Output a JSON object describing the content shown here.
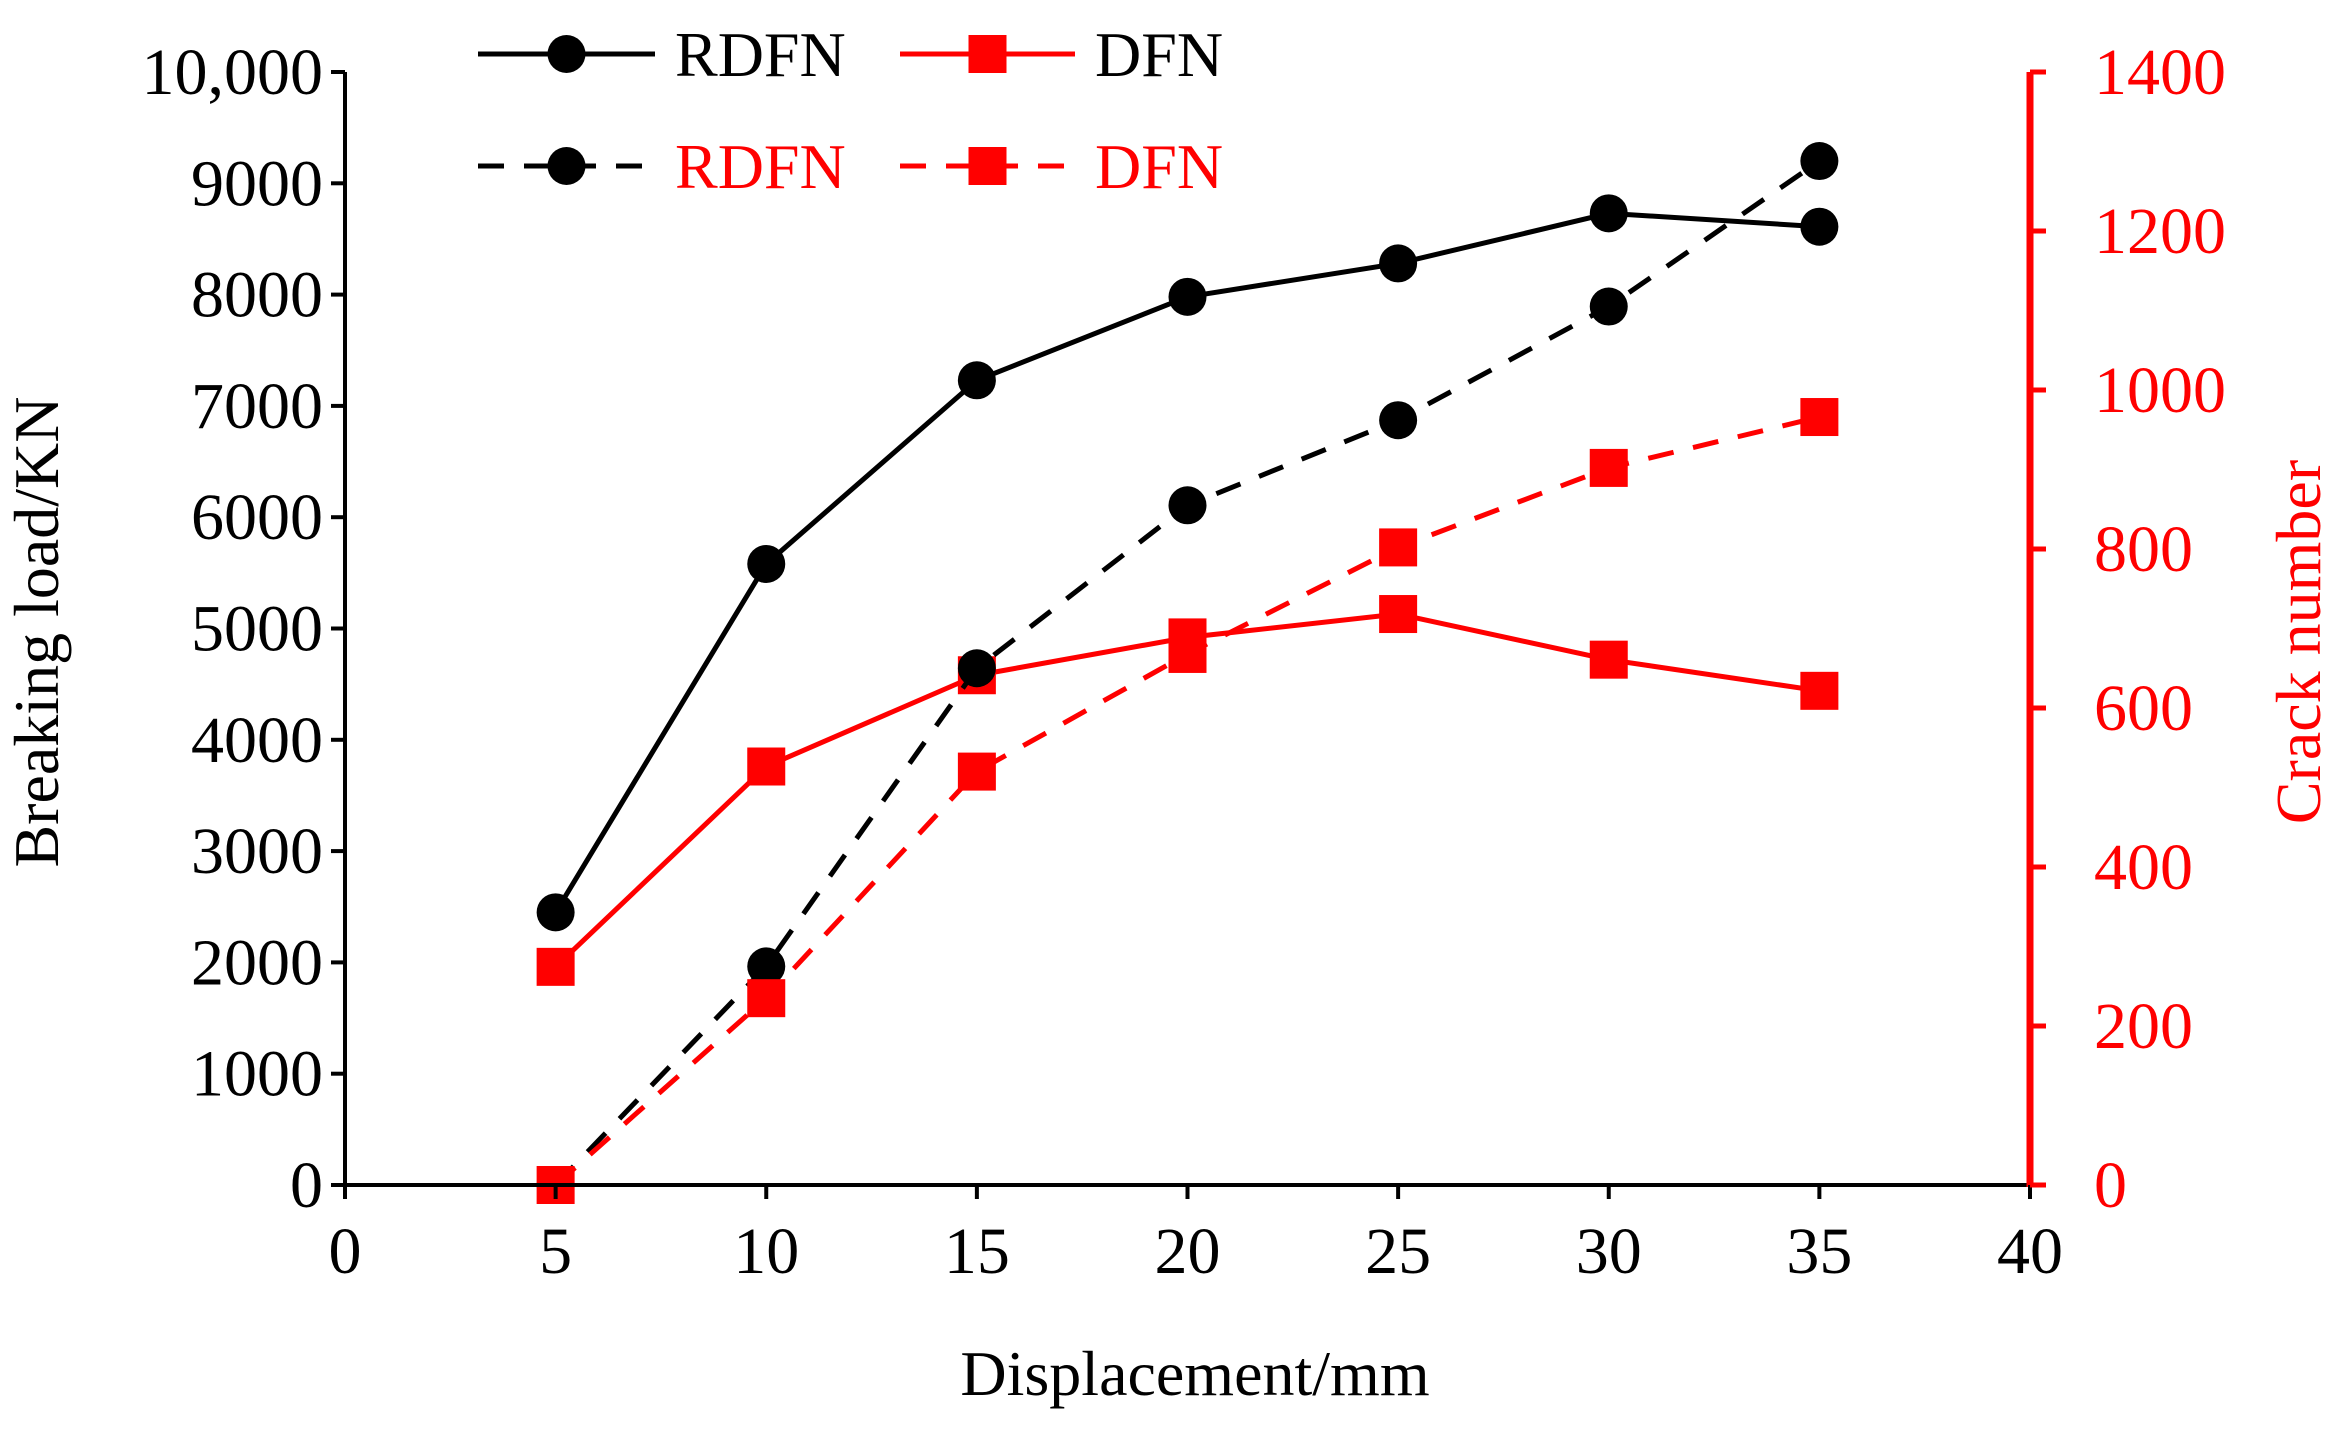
{
  "chart_data": {
    "type": "line",
    "xlabel": "Displacement/mm",
    "ylabel_left": "Breaking load/KN",
    "ylabel_right": "Crack number",
    "xlim": [
      0,
      40
    ],
    "ylim_left": [
      0,
      10000
    ],
    "ylim_right": [
      0,
      1400
    ],
    "x_ticks": [
      "0",
      "5",
      "10",
      "15",
      "20",
      "25",
      "30",
      "35",
      "40"
    ],
    "y_left_ticks": [
      "0",
      "1000",
      "2000",
      "3000",
      "4000",
      "5000",
      "6000",
      "7000",
      "8000",
      "9000",
      "10,000"
    ],
    "y_right_ticks": [
      "0",
      "200",
      "400",
      "600",
      "800",
      "1000",
      "1200",
      "1400"
    ],
    "series": [
      {
        "name": "RDFN",
        "axis": "left",
        "style": "solid",
        "marker": "circle",
        "color": "#000000",
        "label_color": "#000000",
        "x": [
          5,
          10,
          15,
          20,
          25,
          30,
          35
        ],
        "values": [
          2450,
          5580,
          7230,
          7980,
          8280,
          8730,
          8610
        ]
      },
      {
        "name": "DFN",
        "axis": "left",
        "style": "solid",
        "marker": "square",
        "color": "#ff0000",
        "label_color": "#000000",
        "x": [
          5,
          10,
          15,
          20,
          25,
          30,
          35
        ],
        "values": [
          1960,
          3760,
          4580,
          4920,
          5130,
          4720,
          4440
        ]
      },
      {
        "name": "RDFN",
        "axis": "right",
        "style": "dashed",
        "marker": "circle",
        "color": "#000000",
        "label_color": "#ff0000",
        "x": [
          5,
          10,
          15,
          20,
          25,
          30,
          35
        ],
        "values": [
          0,
          275,
          650,
          855,
          962,
          1105,
          1288
        ]
      },
      {
        "name": "DFN",
        "axis": "right",
        "style": "dashed",
        "marker": "square",
        "color": "#ff0000",
        "label_color": "#ff0000",
        "x": [
          5,
          10,
          15,
          20,
          25,
          30,
          35
        ],
        "values": [
          0,
          235,
          520,
          668,
          802,
          902,
          966
        ]
      }
    ],
    "legend": "top-left"
  }
}
